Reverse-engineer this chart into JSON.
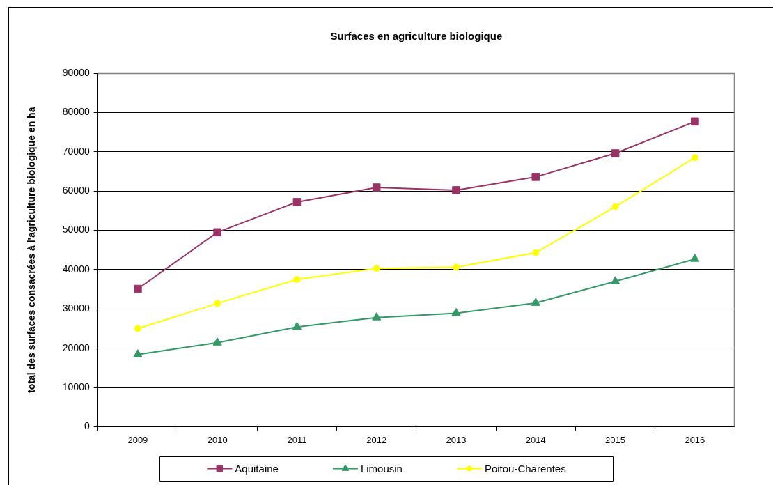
{
  "chart_data": {
    "type": "line",
    "title": "Surfaces en agriculture biologique",
    "ylabel": "total des surfaces consacrées à l'agriculture biologique en ha",
    "categories": [
      "2009",
      "2010",
      "2011",
      "2012",
      "2013",
      "2014",
      "2015",
      "2016"
    ],
    "series": [
      {
        "name": "Aquitaine",
        "color": "#993366",
        "marker": "square",
        "values": [
          35100,
          49500,
          57200,
          60900,
          60200,
          63600,
          69600,
          77700
        ]
      },
      {
        "name": "Limousin",
        "color": "#339966",
        "marker": "triangle",
        "values": [
          18400,
          21400,
          25400,
          27800,
          28900,
          31500,
          37000,
          42700
        ]
      },
      {
        "name": "Poitou-Charentes",
        "color": "#ffff00",
        "marker": "circle",
        "values": [
          25000,
          31400,
          37500,
          40300,
          40600,
          44300,
          56000,
          68500
        ]
      }
    ],
    "ylim": [
      0,
      90000
    ],
    "yticks": [
      0,
      10000,
      20000,
      30000,
      40000,
      50000,
      60000,
      70000,
      80000,
      90000
    ],
    "grid": "y",
    "legend": "bottom",
    "line_style": "solid"
  }
}
